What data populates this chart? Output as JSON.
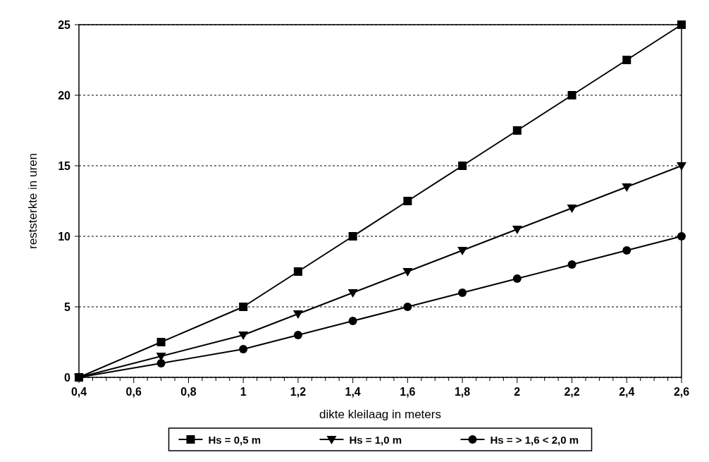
{
  "chart_data": {
    "type": "line",
    "xlabel": "dikte kleilaag in meters",
    "ylabel": "reststerkte in uren",
    "x": [
      0.4,
      0.7,
      1,
      1.2,
      1.4,
      1.6,
      1.8,
      2,
      2.2,
      2.4,
      2.6
    ],
    "series": [
      {
        "name": "Hs = 0,5 m",
        "color": "#000000",
        "marker": "square",
        "values": [
          0,
          2.5,
          5,
          7.5,
          10,
          12.5,
          15,
          17.5,
          20,
          22.5,
          25
        ]
      },
      {
        "name": "Hs = 1,0 m",
        "color": "#000000",
        "marker": "triangle",
        "values": [
          0,
          1.5,
          3,
          4.5,
          6,
          7.5,
          9,
          10.5,
          12,
          13.5,
          15
        ]
      },
      {
        "name": "Hs = > 1,6 < 2,0 m",
        "color": "#000000",
        "marker": "circle",
        "values": [
          0,
          1,
          2,
          3,
          4,
          5,
          6,
          7,
          8,
          9,
          10
        ]
      }
    ],
    "xlim": [
      0.4,
      2.6
    ],
    "xticks": [
      {
        "value": 0.4,
        "label": "0,4"
      },
      {
        "value": 0.45,
        "label": null
      },
      {
        "value": 0.5,
        "label": null
      },
      {
        "value": 0.55,
        "label": null
      },
      {
        "value": 0.6,
        "label": "0,6"
      },
      {
        "value": 0.65,
        "label": null
      },
      {
        "value": 0.7,
        "label": null
      },
      {
        "value": 0.75,
        "label": null
      },
      {
        "value": 0.8,
        "label": "0,8"
      },
      {
        "value": 0.85,
        "label": null
      },
      {
        "value": 0.9,
        "label": null
      },
      {
        "value": 0.95,
        "label": null
      },
      {
        "value": 1,
        "label": "1"
      },
      {
        "value": 1.05,
        "label": null
      },
      {
        "value": 1.1,
        "label": null
      },
      {
        "value": 1.15,
        "label": null
      },
      {
        "value": 1.2,
        "label": "1,2"
      },
      {
        "value": 1.25,
        "label": null
      },
      {
        "value": 1.3,
        "label": null
      },
      {
        "value": 1.35,
        "label": null
      },
      {
        "value": 1.4,
        "label": "1,4"
      },
      {
        "value": 1.45,
        "label": null
      },
      {
        "value": 1.5,
        "label": null
      },
      {
        "value": 1.55,
        "label": null
      },
      {
        "value": 1.6,
        "label": "1,6"
      },
      {
        "value": 1.65,
        "label": null
      },
      {
        "value": 1.7,
        "label": null
      },
      {
        "value": 1.75,
        "label": null
      },
      {
        "value": 1.8,
        "label": "1,8"
      },
      {
        "value": 1.85,
        "label": null
      },
      {
        "value": 1.9,
        "label": null
      },
      {
        "value": 1.95,
        "label": null
      },
      {
        "value": 2,
        "label": "2"
      },
      {
        "value": 2.05,
        "label": null
      },
      {
        "value": 2.1,
        "label": null
      },
      {
        "value": 2.15,
        "label": null
      },
      {
        "value": 2.2,
        "label": "2,2"
      },
      {
        "value": 2.25,
        "label": null
      },
      {
        "value": 2.3,
        "label": null
      },
      {
        "value": 2.35,
        "label": null
      },
      {
        "value": 2.4,
        "label": "2,4"
      },
      {
        "value": 2.45,
        "label": null
      },
      {
        "value": 2.5,
        "label": null
      },
      {
        "value": 2.55,
        "label": null
      },
      {
        "value": 2.6,
        "label": "2,6"
      }
    ],
    "ylim": [
      0,
      25
    ],
    "yticks": [
      0,
      5,
      10,
      15,
      20,
      25
    ],
    "grid": "y",
    "line_style": "solid",
    "legend": "bottom"
  }
}
